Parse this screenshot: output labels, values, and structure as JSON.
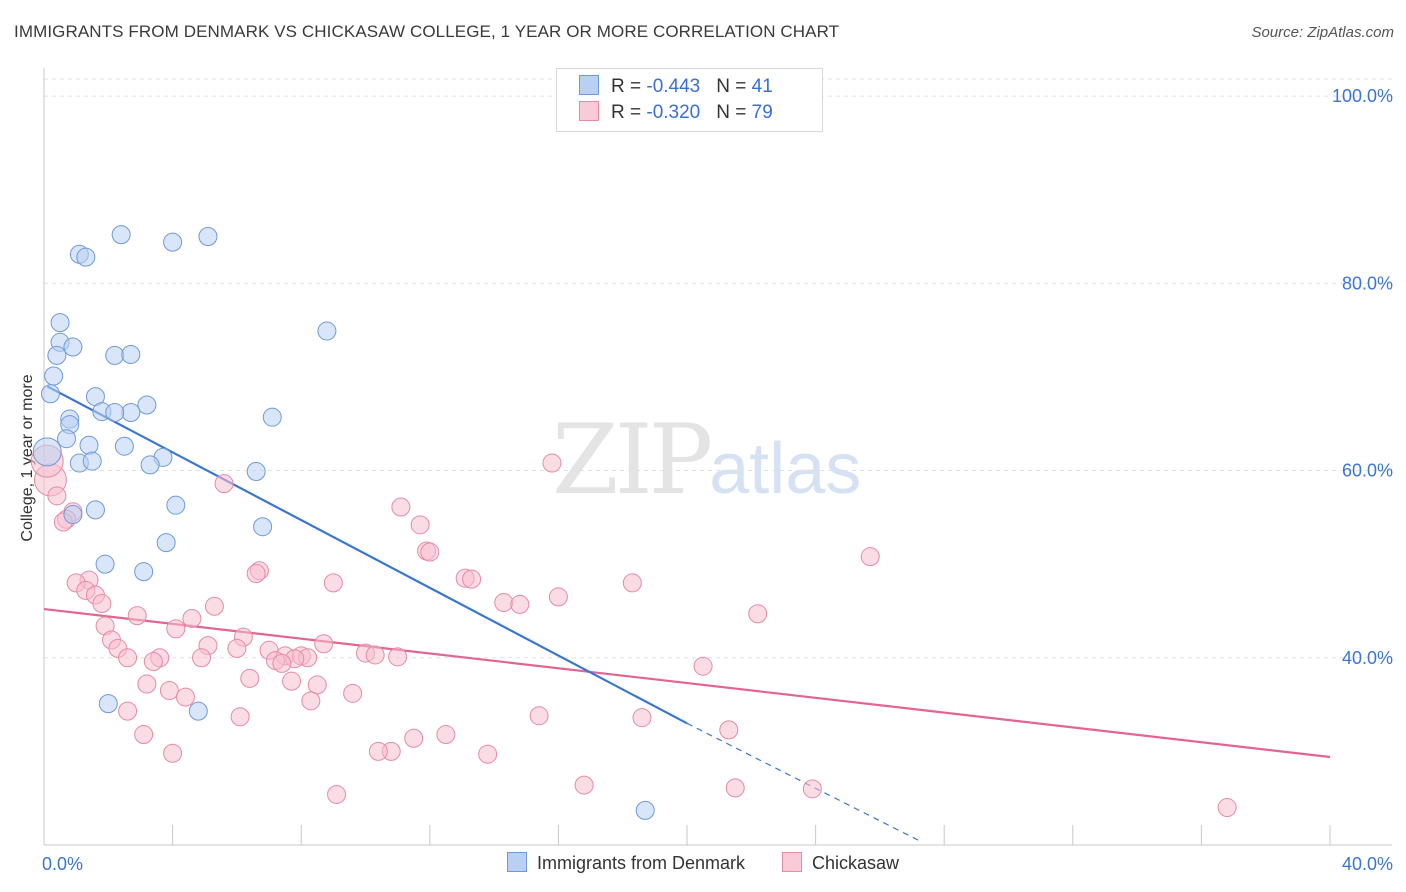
{
  "title": "IMMIGRANTS FROM DENMARK VS CHICKASAW COLLEGE, 1 YEAR OR MORE CORRELATION CHART",
  "source": "Source: ZipAtlas.com",
  "watermark": {
    "zip": "ZIP",
    "atlas": "atlas"
  },
  "legend_top": [
    {
      "r_label": "R = ",
      "r_value": "-0.443",
      "n_label": "N = ",
      "n_value": "41"
    },
    {
      "r_label": "R = ",
      "r_value": "-0.320",
      "n_label": "N = ",
      "n_value": "79"
    }
  ],
  "chart_data": {
    "type": "scatter",
    "title": "IMMIGRANTS FROM DENMARK VS CHICKASAW COLLEGE, 1 YEAR OR MORE CORRELATION CHART",
    "xlabel": "",
    "ylabel": "College, 1 year or more",
    "xlim": [
      0,
      40
    ],
    "ylim": [
      20,
      103
    ],
    "x_ticks": [
      "0.0%",
      "40.0%"
    ],
    "y_ticks": [
      {
        "value": 40,
        "label": "40.0%"
      },
      {
        "value": 60,
        "label": "60.0%"
      },
      {
        "value": 80,
        "label": "80.0%"
      },
      {
        "value": 100,
        "label": "100.0%"
      }
    ],
    "grid": true,
    "legend_position": "bottom",
    "colors": {
      "denmark_fill": "#b9d0f2",
      "denmark_stroke": "#6e9ad8",
      "denmark_line": "#3a76d0",
      "chickasaw_fill": "#f6bfd0",
      "chickasaw_stroke": "#e68aa8",
      "chickasaw_line": "#e26591"
    },
    "series": [
      {
        "name": "Immigrants from Denmark",
        "points": [
          [
            2.4,
            85.2
          ],
          [
            4.0,
            84.4
          ],
          [
            5.1,
            85.0
          ],
          [
            1.1,
            83.1
          ],
          [
            1.3,
            82.8
          ],
          [
            0.5,
            75.8
          ],
          [
            8.8,
            74.9
          ],
          [
            0.5,
            73.7
          ],
          [
            0.9,
            73.2
          ],
          [
            0.4,
            72.3
          ],
          [
            2.2,
            72.3
          ],
          [
            2.7,
            72.4
          ],
          [
            0.3,
            70.1
          ],
          [
            0.2,
            68.2
          ],
          [
            1.6,
            67.9
          ],
          [
            3.2,
            67.0
          ],
          [
            1.8,
            66.3
          ],
          [
            2.7,
            66.2
          ],
          [
            2.2,
            66.2
          ],
          [
            7.1,
            65.7
          ],
          [
            0.8,
            65.5
          ],
          [
            0.8,
            64.9
          ],
          [
            0.7,
            63.4
          ],
          [
            1.4,
            62.7
          ],
          [
            2.5,
            62.6
          ],
          [
            0.1,
            62.0
          ],
          [
            3.7,
            61.4
          ],
          [
            1.1,
            60.8
          ],
          [
            1.5,
            61.0
          ],
          [
            3.3,
            60.6
          ],
          [
            6.6,
            59.9
          ],
          [
            4.1,
            56.3
          ],
          [
            1.6,
            55.8
          ],
          [
            0.9,
            55.3
          ],
          [
            6.8,
            54.0
          ],
          [
            3.8,
            52.3
          ],
          [
            1.9,
            50.0
          ],
          [
            3.1,
            49.2
          ],
          [
            2.0,
            35.1
          ],
          [
            4.8,
            34.3
          ],
          [
            18.7,
            23.7
          ]
        ],
        "trend": {
          "x1": 0.1,
          "y1": 69.0,
          "x2": 20.0,
          "y2": 33.0,
          "dash_x2": 27.2,
          "dash_y2": 20.5
        }
      },
      {
        "name": "Chickasaw",
        "points": [
          [
            0.2,
            59.0
          ],
          [
            0.4,
            57.3
          ],
          [
            5.6,
            58.6
          ],
          [
            15.8,
            60.8
          ],
          [
            11.1,
            56.1
          ],
          [
            0.9,
            55.6
          ],
          [
            0.7,
            54.8
          ],
          [
            0.6,
            54.5
          ],
          [
            11.7,
            54.2
          ],
          [
            11.9,
            51.4
          ],
          [
            12.0,
            51.3
          ],
          [
            25.7,
            50.8
          ],
          [
            6.7,
            49.3
          ],
          [
            6.6,
            49.0
          ],
          [
            1.4,
            48.3
          ],
          [
            13.1,
            48.5
          ],
          [
            13.3,
            48.4
          ],
          [
            1.0,
            48.0
          ],
          [
            9.0,
            48.0
          ],
          [
            18.3,
            48.0
          ],
          [
            1.3,
            47.2
          ],
          [
            1.6,
            46.7
          ],
          [
            16.0,
            46.5
          ],
          [
            14.3,
            45.9
          ],
          [
            14.8,
            45.7
          ],
          [
            1.8,
            45.8
          ],
          [
            5.3,
            45.5
          ],
          [
            22.2,
            44.7
          ],
          [
            2.9,
            44.5
          ],
          [
            4.6,
            44.2
          ],
          [
            1.9,
            43.4
          ],
          [
            4.1,
            43.1
          ],
          [
            6.2,
            42.2
          ],
          [
            2.1,
            41.9
          ],
          [
            5.1,
            41.3
          ],
          [
            8.7,
            41.5
          ],
          [
            2.3,
            41.0
          ],
          [
            6.0,
            41.0
          ],
          [
            7.0,
            40.8
          ],
          [
            10.0,
            40.5
          ],
          [
            10.3,
            40.3
          ],
          [
            2.6,
            40.0
          ],
          [
            3.6,
            40.0
          ],
          [
            7.5,
            40.2
          ],
          [
            8.0,
            40.2
          ],
          [
            11.0,
            40.1
          ],
          [
            3.4,
            39.6
          ],
          [
            4.9,
            40.0
          ],
          [
            8.2,
            40.0
          ],
          [
            7.8,
            39.9
          ],
          [
            7.2,
            39.7
          ],
          [
            7.4,
            39.4
          ],
          [
            20.5,
            39.1
          ],
          [
            6.4,
            37.8
          ],
          [
            7.7,
            37.5
          ],
          [
            8.5,
            37.1
          ],
          [
            3.2,
            37.2
          ],
          [
            3.9,
            36.5
          ],
          [
            9.6,
            36.2
          ],
          [
            4.4,
            35.8
          ],
          [
            8.3,
            35.4
          ],
          [
            2.6,
            34.3
          ],
          [
            6.1,
            33.7
          ],
          [
            15.4,
            33.8
          ],
          [
            18.6,
            33.6
          ],
          [
            21.3,
            32.3
          ],
          [
            3.1,
            31.8
          ],
          [
            12.5,
            31.8
          ],
          [
            11.5,
            31.4
          ],
          [
            4.0,
            29.8
          ],
          [
            10.8,
            30.0
          ],
          [
            10.4,
            30.0
          ],
          [
            13.8,
            29.7
          ],
          [
            16.8,
            26.4
          ],
          [
            21.5,
            26.1
          ],
          [
            23.9,
            26.0
          ],
          [
            9.1,
            25.4
          ],
          [
            36.8,
            24.0
          ],
          [
            0.1,
            61.0
          ]
        ],
        "trend": {
          "x1": 0.0,
          "y1": 45.2,
          "x2": 40.0,
          "y2": 29.4
        }
      }
    ]
  },
  "legend_bottom": [
    "Immigrants from Denmark",
    "Chickasaw"
  ]
}
